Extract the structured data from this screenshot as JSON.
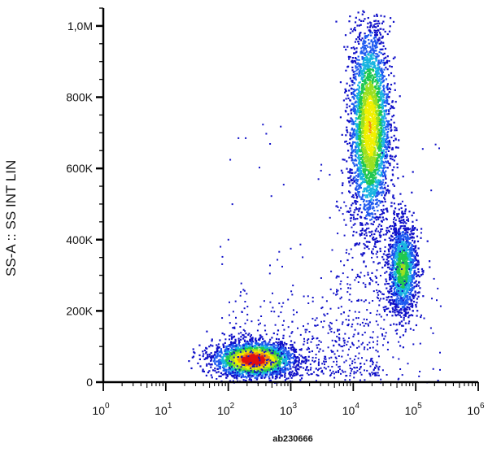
{
  "chart_data": {
    "type": "scatter",
    "style": "flow-cytometry density dot plot (blue→green→yellow→red)",
    "xlabel": "ab230666",
    "ylabel": "SS-A :: SS INT LIN",
    "x_scale": "log",
    "xlim": [
      1,
      1000000
    ],
    "ylim": [
      0,
      1050000
    ],
    "x_ticks": [
      {
        "base": "10",
        "exp": "0",
        "value": 1
      },
      {
        "base": "10",
        "exp": "1",
        "value": 10
      },
      {
        "base": "10",
        "exp": "2",
        "value": 100
      },
      {
        "base": "10",
        "exp": "3",
        "value": 1000
      },
      {
        "base": "10",
        "exp": "4",
        "value": 10000
      },
      {
        "base": "10",
        "exp": "5",
        "value": 100000
      },
      {
        "base": "10",
        "exp": "6",
        "value": 1000000
      }
    ],
    "y_ticks": [
      {
        "label": "0",
        "value": 0
      },
      {
        "label": "200K",
        "value": 200000
      },
      {
        "label": "400K",
        "value": 400000
      },
      {
        "label": "600K",
        "value": 600000
      },
      {
        "label": "800K",
        "value": 800000
      },
      {
        "label": "1,0M",
        "value": 1000000
      }
    ],
    "populations": [
      {
        "center_x": 250,
        "center_y": 65000,
        "spread_log_x": 0.32,
        "spread_y": 25000,
        "relative_density": "highest"
      },
      {
        "center_x": 18000,
        "center_y": 720000,
        "spread_log_x": 0.16,
        "spread_y": 140000,
        "relative_density": "high"
      },
      {
        "center_x": 60000,
        "center_y": 320000,
        "spread_log_x": 0.12,
        "spread_y": 65000,
        "relative_density": "medium"
      }
    ],
    "colors": {
      "low": "#1010c8",
      "mid": "#20c850",
      "high": "#f0f000",
      "peak": "#e01010"
    },
    "grid": false,
    "legend": "none"
  }
}
